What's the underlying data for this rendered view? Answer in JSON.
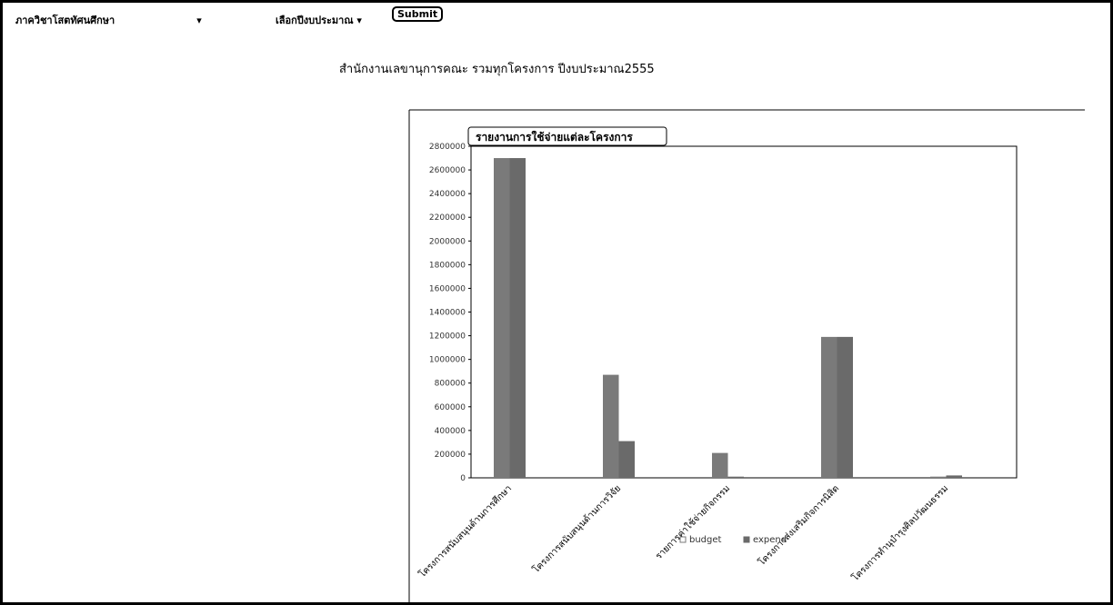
{
  "header": {
    "department": "ภาควิชาโสตทัศนศึกษา",
    "year_select": "เลือกปีงบประมาณ",
    "submit": "Submit",
    "title": "สำนักงานเลขานุการคณะ รวมทุกโครงการ ปีงบประมาณ2555"
  },
  "chart_data": {
    "type": "bar",
    "title": "รายงานการใช้จ่ายแต่ละโครงการ",
    "categories": [
      "โครงการสนับสนุนด้านการศึกษา",
      "โครงการสนับสนุนด้านการวิจัย",
      "รายการค่าใช้จ่ายกิจกรรม",
      "โครงการส่งเสริมกิจการนิสิต",
      "โครงการทำนุบำรุงศิลปวัฒนธรรม"
    ],
    "series": [
      {
        "name": "budget",
        "color": "#7a7a7a",
        "values": [
          2700000,
          870000,
          210000,
          1190000,
          10000
        ]
      },
      {
        "name": "expend",
        "color": "#6a6a6a",
        "values": [
          2700000,
          310000,
          10000,
          1190000,
          20000
        ]
      }
    ],
    "ylim": [
      0,
      2800000
    ],
    "yticks": [
      0,
      200000,
      400000,
      600000,
      800000,
      1000000,
      1200000,
      1400000,
      1600000,
      1800000,
      2000000,
      2200000,
      2400000,
      2600000,
      2800000
    ],
    "legend": "bottom"
  }
}
